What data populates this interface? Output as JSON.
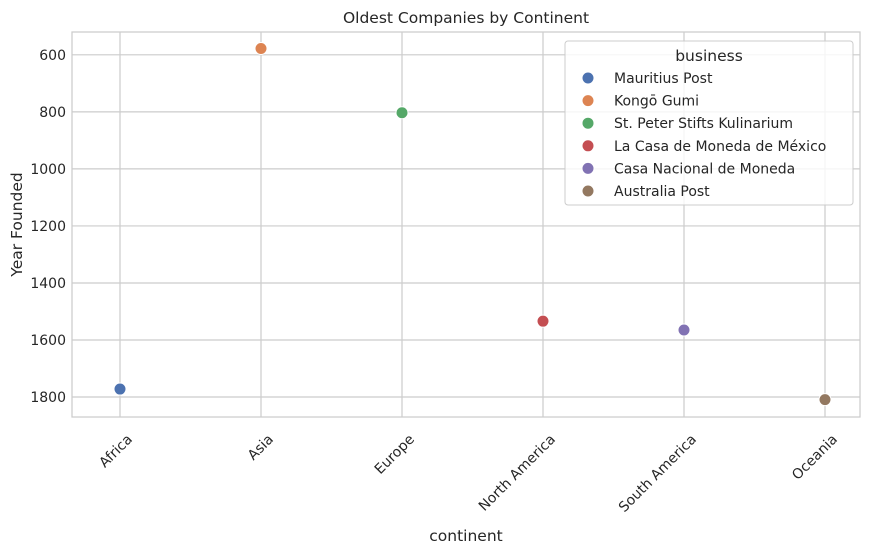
{
  "chart_data": {
    "type": "scatter",
    "title": "Oldest Companies by Continent",
    "xlabel": "continent",
    "ylabel": "Year Founded",
    "categories": [
      "Africa",
      "Asia",
      "Europe",
      "North America",
      "South America",
      "Oceania"
    ],
    "y_inverted": true,
    "ylim": [
      1870,
      520
    ],
    "yticks": [
      600,
      800,
      1000,
      1200,
      1400,
      1600,
      1800
    ],
    "grid": true,
    "legend": {
      "title": "business",
      "placement": "top-right"
    },
    "series": [
      {
        "name": "Mauritius Post",
        "x": "Africa",
        "y": 1772,
        "color": "#4c72b0"
      },
      {
        "name": "Kongō Gumi",
        "x": "Asia",
        "y": 578,
        "color": "#dd8452"
      },
      {
        "name": "St. Peter Stifts Kulinarium",
        "x": "Europe",
        "y": 803,
        "color": "#55a868"
      },
      {
        "name": "La Casa de Moneda de México",
        "x": "North America",
        "y": 1534,
        "color": "#c44e52"
      },
      {
        "name": "Casa Nacional de Moneda",
        "x": "South America",
        "y": 1565,
        "color": "#8172b3"
      },
      {
        "name": "Australia Post",
        "x": "Oceania",
        "y": 1809,
        "color": "#937860"
      }
    ]
  }
}
